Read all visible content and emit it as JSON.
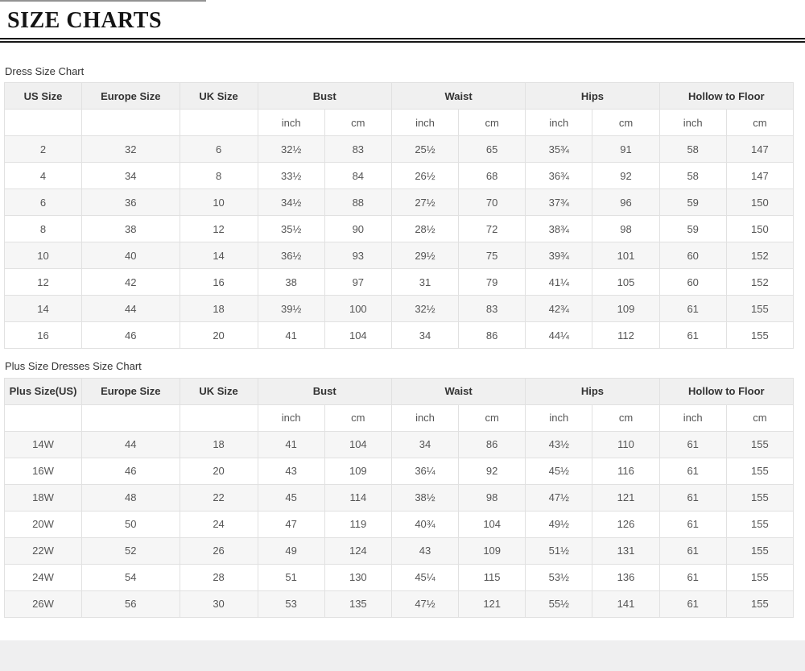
{
  "page": {
    "title": "SIZE CHARTS",
    "background_color": "#ffffff",
    "rule_color": "#161616",
    "footer_band_color": "#efeff0",
    "header_bg_color": "#f0f0f0",
    "stripe_color": "#f6f6f6"
  },
  "tables": [
    {
      "caption": "Dress Size Chart",
      "group_headers": [
        {
          "label": "US Size",
          "span": 1
        },
        {
          "label": "Europe Size",
          "span": 1
        },
        {
          "label": "UK Size",
          "span": 1
        },
        {
          "label": "Bust",
          "span": 2
        },
        {
          "label": "Waist",
          "span": 2
        },
        {
          "label": "Hips",
          "span": 2
        },
        {
          "label": "Hollow to Floor",
          "span": 2
        }
      ],
      "unit_headers": [
        "",
        "",
        "",
        "inch",
        "cm",
        "inch",
        "cm",
        "inch",
        "cm",
        "inch",
        "cm"
      ],
      "rows": [
        [
          "2",
          "32",
          "6",
          "32½",
          "83",
          "25½",
          "65",
          "35¾",
          "91",
          "58",
          "147"
        ],
        [
          "4",
          "34",
          "8",
          "33½",
          "84",
          "26½",
          "68",
          "36¾",
          "92",
          "58",
          "147"
        ],
        [
          "6",
          "36",
          "10",
          "34½",
          "88",
          "27½",
          "70",
          "37¾",
          "96",
          "59",
          "150"
        ],
        [
          "8",
          "38",
          "12",
          "35½",
          "90",
          "28½",
          "72",
          "38¾",
          "98",
          "59",
          "150"
        ],
        [
          "10",
          "40",
          "14",
          "36½",
          "93",
          "29½",
          "75",
          "39¾",
          "101",
          "60",
          "152"
        ],
        [
          "12",
          "42",
          "16",
          "38",
          "97",
          "31",
          "79",
          "41¼",
          "105",
          "60",
          "152"
        ],
        [
          "14",
          "44",
          "18",
          "39½",
          "100",
          "32½",
          "83",
          "42¾",
          "109",
          "61",
          "155"
        ],
        [
          "16",
          "46",
          "20",
          "41",
          "104",
          "34",
          "86",
          "44¼",
          "112",
          "61",
          "155"
        ]
      ]
    },
    {
      "caption": "Plus Size Dresses Size Chart",
      "group_headers": [
        {
          "label": "Plus Size(US)",
          "span": 1
        },
        {
          "label": "Europe Size",
          "span": 1
        },
        {
          "label": "UK Size",
          "span": 1
        },
        {
          "label": "Bust",
          "span": 2
        },
        {
          "label": "Waist",
          "span": 2
        },
        {
          "label": "Hips",
          "span": 2
        },
        {
          "label": "Hollow to Floor",
          "span": 2
        }
      ],
      "unit_headers": [
        "",
        "",
        "",
        "inch",
        "cm",
        "inch",
        "cm",
        "inch",
        "cm",
        "inch",
        "cm"
      ],
      "rows": [
        [
          "14W",
          "44",
          "18",
          "41",
          "104",
          "34",
          "86",
          "43½",
          "110",
          "61",
          "155"
        ],
        [
          "16W",
          "46",
          "20",
          "43",
          "109",
          "36¼",
          "92",
          "45½",
          "116",
          "61",
          "155"
        ],
        [
          "18W",
          "48",
          "22",
          "45",
          "114",
          "38½",
          "98",
          "47½",
          "121",
          "61",
          "155"
        ],
        [
          "20W",
          "50",
          "24",
          "47",
          "119",
          "40¾",
          "104",
          "49½",
          "126",
          "61",
          "155"
        ],
        [
          "22W",
          "52",
          "26",
          "49",
          "124",
          "43",
          "109",
          "51½",
          "131",
          "61",
          "155"
        ],
        [
          "24W",
          "54",
          "28",
          "51",
          "130",
          "45¼",
          "115",
          "53½",
          "136",
          "61",
          "155"
        ],
        [
          "26W",
          "56",
          "30",
          "53",
          "135",
          "47½",
          "121",
          "55½",
          "141",
          "61",
          "155"
        ]
      ]
    }
  ]
}
